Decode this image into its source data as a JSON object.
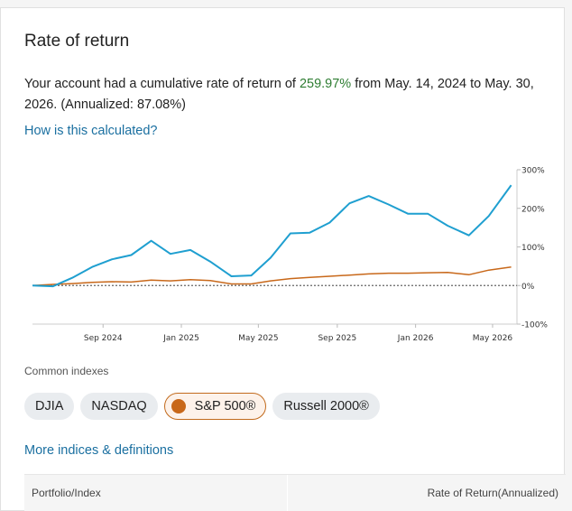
{
  "title": "Rate of return",
  "summary": {
    "prefix": "Your account had a cumulative rate of return of ",
    "pct": "259.97%",
    "suffix": " from May. 14, 2024 to May. 30, 2026. (Annualized: 87.08%)"
  },
  "how_link": "How is this calculated?",
  "colors": {
    "account": "#1f9fd0",
    "sp500": "#c8681a",
    "accent_link": "#1a6fa0",
    "positive": "#2e7d32"
  },
  "chart_data": {
    "type": "line",
    "x_ticks": [
      "Sep 2024",
      "Jan 2025",
      "May 2025",
      "Sep 2025",
      "Jan 2026",
      "May 2026"
    ],
    "y_ticks": [
      "300%",
      "200%",
      "100%",
      "0%",
      "-100%"
    ],
    "ylim": [
      -100,
      300
    ],
    "xlim": [
      "2024-05-14",
      "2026-06-08"
    ],
    "grid": false,
    "zero_line": "dotted",
    "series": [
      {
        "color": "#1f9fd0",
        "points": [
          [
            "2024-05-14",
            0
          ],
          [
            "2024-06-15",
            -2
          ],
          [
            "2024-07-15",
            20
          ],
          [
            "2024-08-15",
            48
          ],
          [
            "2024-09-15",
            68
          ],
          [
            "2024-10-15",
            79
          ],
          [
            "2024-11-15",
            116
          ],
          [
            "2024-12-15",
            82
          ],
          [
            "2025-01-15",
            92
          ],
          [
            "2025-02-15",
            62
          ],
          [
            "2025-03-20",
            24
          ],
          [
            "2025-04-20",
            26
          ],
          [
            "2025-05-20",
            72
          ],
          [
            "2025-06-20",
            135
          ],
          [
            "2025-07-20",
            137
          ],
          [
            "2025-08-20",
            163
          ],
          [
            "2025-09-20",
            213
          ],
          [
            "2025-10-20",
            232
          ],
          [
            "2025-11-20",
            210
          ],
          [
            "2025-12-20",
            186
          ],
          [
            "2026-01-20",
            186
          ],
          [
            "2026-02-20",
            155
          ],
          [
            "2026-03-25",
            130
          ],
          [
            "2026-04-25",
            180
          ],
          [
            "2026-05-30",
            260
          ]
        ]
      },
      {
        "color": "#c8681a",
        "points": [
          [
            "2024-05-14",
            0
          ],
          [
            "2024-06-15",
            3
          ],
          [
            "2024-07-15",
            5
          ],
          [
            "2024-08-15",
            8
          ],
          [
            "2024-09-15",
            10
          ],
          [
            "2024-10-15",
            9
          ],
          [
            "2024-11-15",
            14
          ],
          [
            "2024-12-15",
            12
          ],
          [
            "2025-01-15",
            15
          ],
          [
            "2025-02-15",
            13
          ],
          [
            "2025-03-20",
            4
          ],
          [
            "2025-04-20",
            4
          ],
          [
            "2025-05-20",
            12
          ],
          [
            "2025-06-20",
            18
          ],
          [
            "2025-07-20",
            21
          ],
          [
            "2025-08-20",
            24
          ],
          [
            "2025-09-20",
            27
          ],
          [
            "2025-10-20",
            30
          ],
          [
            "2025-11-20",
            32
          ],
          [
            "2025-12-20",
            32
          ],
          [
            "2026-01-20",
            33
          ],
          [
            "2026-02-20",
            34
          ],
          [
            "2026-03-25",
            28
          ],
          [
            "2026-04-25",
            40
          ],
          [
            "2026-05-30",
            48
          ]
        ]
      }
    ]
  },
  "common_indexes_label": "Common indexes",
  "indexes": [
    "DJIA",
    "NASDAQ",
    "S&P 500®",
    "Russell 2000®"
  ],
  "more_link": "More indices & definitions",
  "table": {
    "col1": "Portfolio/Index",
    "col2": "Rate of Return(Annualized)"
  }
}
